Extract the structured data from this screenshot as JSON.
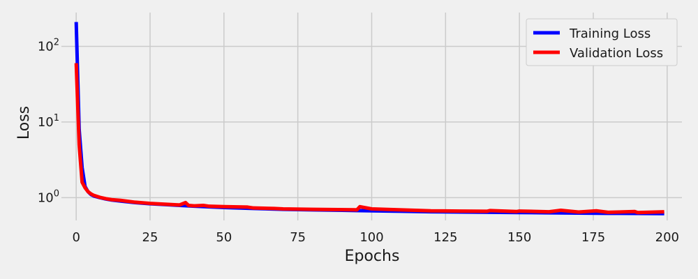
{
  "chart_data": {
    "type": "line",
    "title": "",
    "xlabel": "Epochs",
    "ylabel": "Loss",
    "yscale": "log",
    "xlim": [
      -5,
      205
    ],
    "ylim": [
      0.5,
      280
    ],
    "xticks": [
      0,
      25,
      50,
      75,
      100,
      125,
      150,
      175,
      200
    ],
    "xtick_labels": [
      "0",
      "25",
      "50",
      "75",
      "100",
      "125",
      "150",
      "175",
      "200"
    ],
    "yticks": [
      1,
      10,
      100
    ],
    "ytick_labels": [
      {
        "base": "10",
        "exp": "0"
      },
      {
        "base": "10",
        "exp": "1"
      },
      {
        "base": "10",
        "exp": "2"
      }
    ],
    "grid": true,
    "legend": {
      "position": "top-right",
      "entries": [
        "Training Loss",
        "Validation Loss"
      ]
    },
    "series": [
      {
        "name": "Training Loss",
        "color": "#0000ff",
        "x": [
          0,
          1,
          2,
          3,
          4,
          5,
          6,
          8,
          10,
          12,
          15,
          20,
          25,
          30,
          35,
          40,
          50,
          60,
          70,
          80,
          90,
          100,
          110,
          120,
          130,
          140,
          150,
          160,
          170,
          180,
          190,
          199
        ],
        "y": [
          210,
          8,
          2.5,
          1.4,
          1.2,
          1.1,
          1.05,
          1.0,
          0.96,
          0.93,
          0.9,
          0.86,
          0.83,
          0.81,
          0.79,
          0.77,
          0.74,
          0.72,
          0.7,
          0.69,
          0.68,
          0.67,
          0.66,
          0.65,
          0.645,
          0.64,
          0.635,
          0.63,
          0.625,
          0.62,
          0.618,
          0.615
        ]
      },
      {
        "name": "Validation Loss",
        "color": "#ff0000",
        "x": [
          0,
          1,
          2,
          3,
          4,
          5,
          6,
          8,
          10,
          12,
          15,
          20,
          25,
          30,
          35,
          37,
          38,
          40,
          43,
          45,
          50,
          58,
          60,
          67,
          70,
          80,
          95,
          96,
          100,
          110,
          120,
          130,
          139,
          140,
          149,
          150,
          160,
          164,
          170,
          176,
          180,
          189,
          190,
          199
        ],
        "y": [
          60,
          5,
          1.6,
          1.35,
          1.2,
          1.12,
          1.07,
          1.01,
          0.97,
          0.94,
          0.92,
          0.87,
          0.84,
          0.82,
          0.8,
          0.86,
          0.79,
          0.78,
          0.79,
          0.77,
          0.76,
          0.75,
          0.73,
          0.72,
          0.71,
          0.7,
          0.69,
          0.76,
          0.71,
          0.69,
          0.67,
          0.665,
          0.66,
          0.675,
          0.655,
          0.665,
          0.65,
          0.68,
          0.645,
          0.67,
          0.64,
          0.655,
          0.635,
          0.65
        ]
      }
    ]
  }
}
